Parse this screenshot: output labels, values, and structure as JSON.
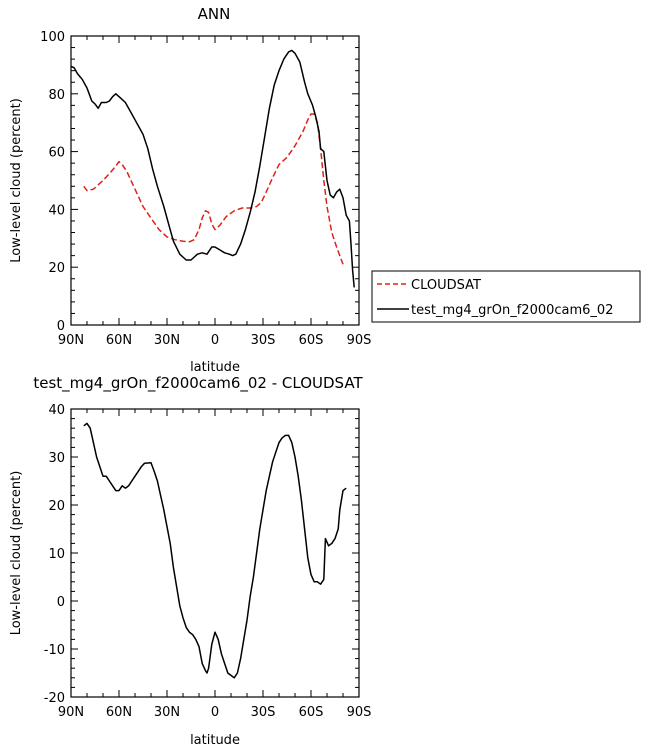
{
  "chart_data": [
    {
      "type": "line",
      "title": "ANN",
      "xlabel": "latitude",
      "ylabel": "Low-level cloud (percent)",
      "xlim": [
        90,
        -90
      ],
      "ylim": [
        0,
        100
      ],
      "x_ticks": [
        90,
        60,
        30,
        0,
        -30,
        -60,
        -90
      ],
      "x_tick_labels": [
        "90N",
        "60N",
        "30N",
        "0",
        "30S",
        "60S",
        "90S"
      ],
      "y_ticks": [
        0,
        20,
        40,
        60,
        80,
        100
      ],
      "y_tick_labels": [
        "0",
        "20",
        "40",
        "60",
        "80",
        "100"
      ],
      "legend_position": "right",
      "series": [
        {
          "name": "CLOUDSAT",
          "color": "#e0201a",
          "dash": "dashed",
          "points": [
            [
              82,
              48
            ],
            [
              80,
              46.5
            ],
            [
              76,
              47
            ],
            [
              70,
              50
            ],
            [
              65,
              53
            ],
            [
              62,
              55
            ],
            [
              60,
              56.5
            ],
            [
              58,
              55.5
            ],
            [
              55,
              53
            ],
            [
              50,
              47
            ],
            [
              45,
              41
            ],
            [
              40,
              37
            ],
            [
              35,
              33
            ],
            [
              30,
              30.5
            ],
            [
              25,
              29.5
            ],
            [
              20,
              29
            ],
            [
              16,
              28.8
            ],
            [
              13,
              29.5
            ],
            [
              10,
              33
            ],
            [
              8,
              37
            ],
            [
              6,
              39.5
            ],
            [
              4,
              39
            ],
            [
              2,
              35
            ],
            [
              0,
              33
            ],
            [
              -3,
              34.5
            ],
            [
              -7,
              37.5
            ],
            [
              -12,
              39.5
            ],
            [
              -17,
              40.5
            ],
            [
              -22,
              40.5
            ],
            [
              -26,
              41
            ],
            [
              -29,
              42.5
            ],
            [
              -32,
              46
            ],
            [
              -36,
              51
            ],
            [
              -40,
              55.5
            ],
            [
              -45,
              58
            ],
            [
              -50,
              62
            ],
            [
              -55,
              67
            ],
            [
              -58,
              71
            ],
            [
              -60,
              73
            ],
            [
              -62,
              73
            ],
            [
              -64,
              70
            ],
            [
              -66,
              61
            ],
            [
              -68,
              50
            ],
            [
              -70,
              41
            ],
            [
              -73,
              32
            ],
            [
              -76,
              27
            ],
            [
              -80,
              21
            ]
          ]
        },
        {
          "name": "test_mg4_grOn_f2000cam6_02",
          "color": "#000000",
          "dash": "solid",
          "points": [
            [
              90,
              89.5
            ],
            [
              88,
              89
            ],
            [
              86,
              87
            ],
            [
              83,
              85
            ],
            [
              80,
              82
            ],
            [
              77,
              77.5
            ],
            [
              75,
              76.5
            ],
            [
              73,
              75
            ],
            [
              71,
              77
            ],
            [
              68,
              77
            ],
            [
              66,
              77.5
            ],
            [
              64,
              79
            ],
            [
              62,
              80
            ],
            [
              59,
              78.5
            ],
            [
              56,
              77
            ],
            [
              53,
              74
            ],
            [
              50,
              71
            ],
            [
              45,
              66
            ],
            [
              42,
              61
            ],
            [
              39,
              54
            ],
            [
              36,
              48
            ],
            [
              32,
              41
            ],
            [
              29,
              35
            ],
            [
              26,
              29
            ],
            [
              22,
              24.5
            ],
            [
              18,
              22.5
            ],
            [
              15,
              22.5
            ],
            [
              11,
              24.5
            ],
            [
              8,
              25
            ],
            [
              5,
              24.5
            ],
            [
              2,
              27
            ],
            [
              0,
              27
            ],
            [
              -3,
              26
            ],
            [
              -6,
              25
            ],
            [
              -9,
              24.5
            ],
            [
              -11,
              24
            ],
            [
              -13,
              24.5
            ],
            [
              -16,
              28
            ],
            [
              -19,
              33
            ],
            [
              -22,
              39
            ],
            [
              -25,
              46
            ],
            [
              -28,
              55
            ],
            [
              -31,
              65
            ],
            [
              -34,
              75
            ],
            [
              -37,
              83
            ],
            [
              -40,
              88
            ],
            [
              -43,
              92
            ],
            [
              -46,
              94.5
            ],
            [
              -48,
              95
            ],
            [
              -50,
              94
            ],
            [
              -53,
              91
            ],
            [
              -56,
              84
            ],
            [
              -58,
              80
            ],
            [
              -61,
              76
            ],
            [
              -63,
              72
            ],
            [
              -65,
              67
            ],
            [
              -66,
              61
            ],
            [
              -68,
              60
            ],
            [
              -70,
              50
            ],
            [
              -72,
              45
            ],
            [
              -74,
              44
            ],
            [
              -76,
              46
            ],
            [
              -78,
              47
            ],
            [
              -80,
              44
            ],
            [
              -82,
              38
            ],
            [
              -84,
              36
            ],
            [
              -85,
              28
            ],
            [
              -86,
              19
            ],
            [
              -87,
              13
            ]
          ]
        }
      ]
    },
    {
      "type": "line",
      "title": "test_mg4_grOn_f2000cam6_02 - CLOUDSAT",
      "xlabel": "latitude",
      "ylabel": "Low-level cloud (percent)",
      "xlim": [
        90,
        -90
      ],
      "ylim": [
        -20,
        40
      ],
      "x_ticks": [
        90,
        60,
        30,
        0,
        -30,
        -60,
        -90
      ],
      "x_tick_labels": [
        "90N",
        "60N",
        "30N",
        "0",
        "30S",
        "60S",
        "90S"
      ],
      "y_ticks": [
        -20,
        -10,
        0,
        10,
        20,
        30,
        40
      ],
      "y_tick_labels": [
        "-20",
        "-10",
        "0",
        "10",
        "20",
        "30",
        "40"
      ],
      "series": [
        {
          "name": "",
          "color": "#000000",
          "dash": "solid",
          "points": [
            [
              82,
              36.5
            ],
            [
              80,
              37
            ],
            [
              78,
              36
            ],
            [
              76,
              33
            ],
            [
              74,
              30
            ],
            [
              72,
              28
            ],
            [
              70,
              26
            ],
            [
              68,
              26
            ],
            [
              66,
              25
            ],
            [
              64,
              24
            ],
            [
              62,
              23
            ],
            [
              60,
              23
            ],
            [
              58,
              24
            ],
            [
              56,
              23.5
            ],
            [
              54,
              24
            ],
            [
              52,
              25
            ],
            [
              50,
              26
            ],
            [
              48,
              27
            ],
            [
              46,
              28
            ],
            [
              44,
              28.7
            ],
            [
              40,
              28.8
            ],
            [
              38,
              27
            ],
            [
              36,
              25
            ],
            [
              34,
              22
            ],
            [
              32,
              19
            ],
            [
              30,
              15.5
            ],
            [
              28,
              12
            ],
            [
              26,
              7
            ],
            [
              24,
              3
            ],
            [
              22,
              -1
            ],
            [
              20,
              -3.5
            ],
            [
              18,
              -5.5
            ],
            [
              16,
              -6.5
            ],
            [
              14,
              -7
            ],
            [
              12,
              -8
            ],
            [
              10,
              -9.5
            ],
            [
              8,
              -13
            ],
            [
              6,
              -14.5
            ],
            [
              5,
              -15
            ],
            [
              4,
              -14
            ],
            [
              2,
              -9
            ],
            [
              0,
              -6.5
            ],
            [
              -2,
              -8
            ],
            [
              -4,
              -11
            ],
            [
              -6,
              -13
            ],
            [
              -8,
              -15
            ],
            [
              -10,
              -15.5
            ],
            [
              -12,
              -16
            ],
            [
              -14,
              -15
            ],
            [
              -16,
              -12
            ],
            [
              -18,
              -8
            ],
            [
              -20,
              -4
            ],
            [
              -22,
              1
            ],
            [
              -24,
              5
            ],
            [
              -26,
              10
            ],
            [
              -28,
              15
            ],
            [
              -30,
              19
            ],
            [
              -32,
              23
            ],
            [
              -34,
              26
            ],
            [
              -36,
              29
            ],
            [
              -38,
              31
            ],
            [
              -40,
              33
            ],
            [
              -42,
              34
            ],
            [
              -44,
              34.5
            ],
            [
              -46,
              34.5
            ],
            [
              -48,
              33
            ],
            [
              -50,
              30
            ],
            [
              -52,
              26
            ],
            [
              -54,
              21
            ],
            [
              -56,
              15
            ],
            [
              -58,
              9
            ],
            [
              -60,
              5.5
            ],
            [
              -62,
              4
            ],
            [
              -64,
              4
            ],
            [
              -66,
              3.5
            ],
            [
              -68,
              4.5
            ],
            [
              -69,
              13
            ],
            [
              -71,
              11.5
            ],
            [
              -73,
              12
            ],
            [
              -75,
              13
            ],
            [
              -77,
              15
            ],
            [
              -78,
              19
            ],
            [
              -80,
              23
            ],
            [
              -82,
              23.5
            ]
          ]
        }
      ]
    }
  ]
}
